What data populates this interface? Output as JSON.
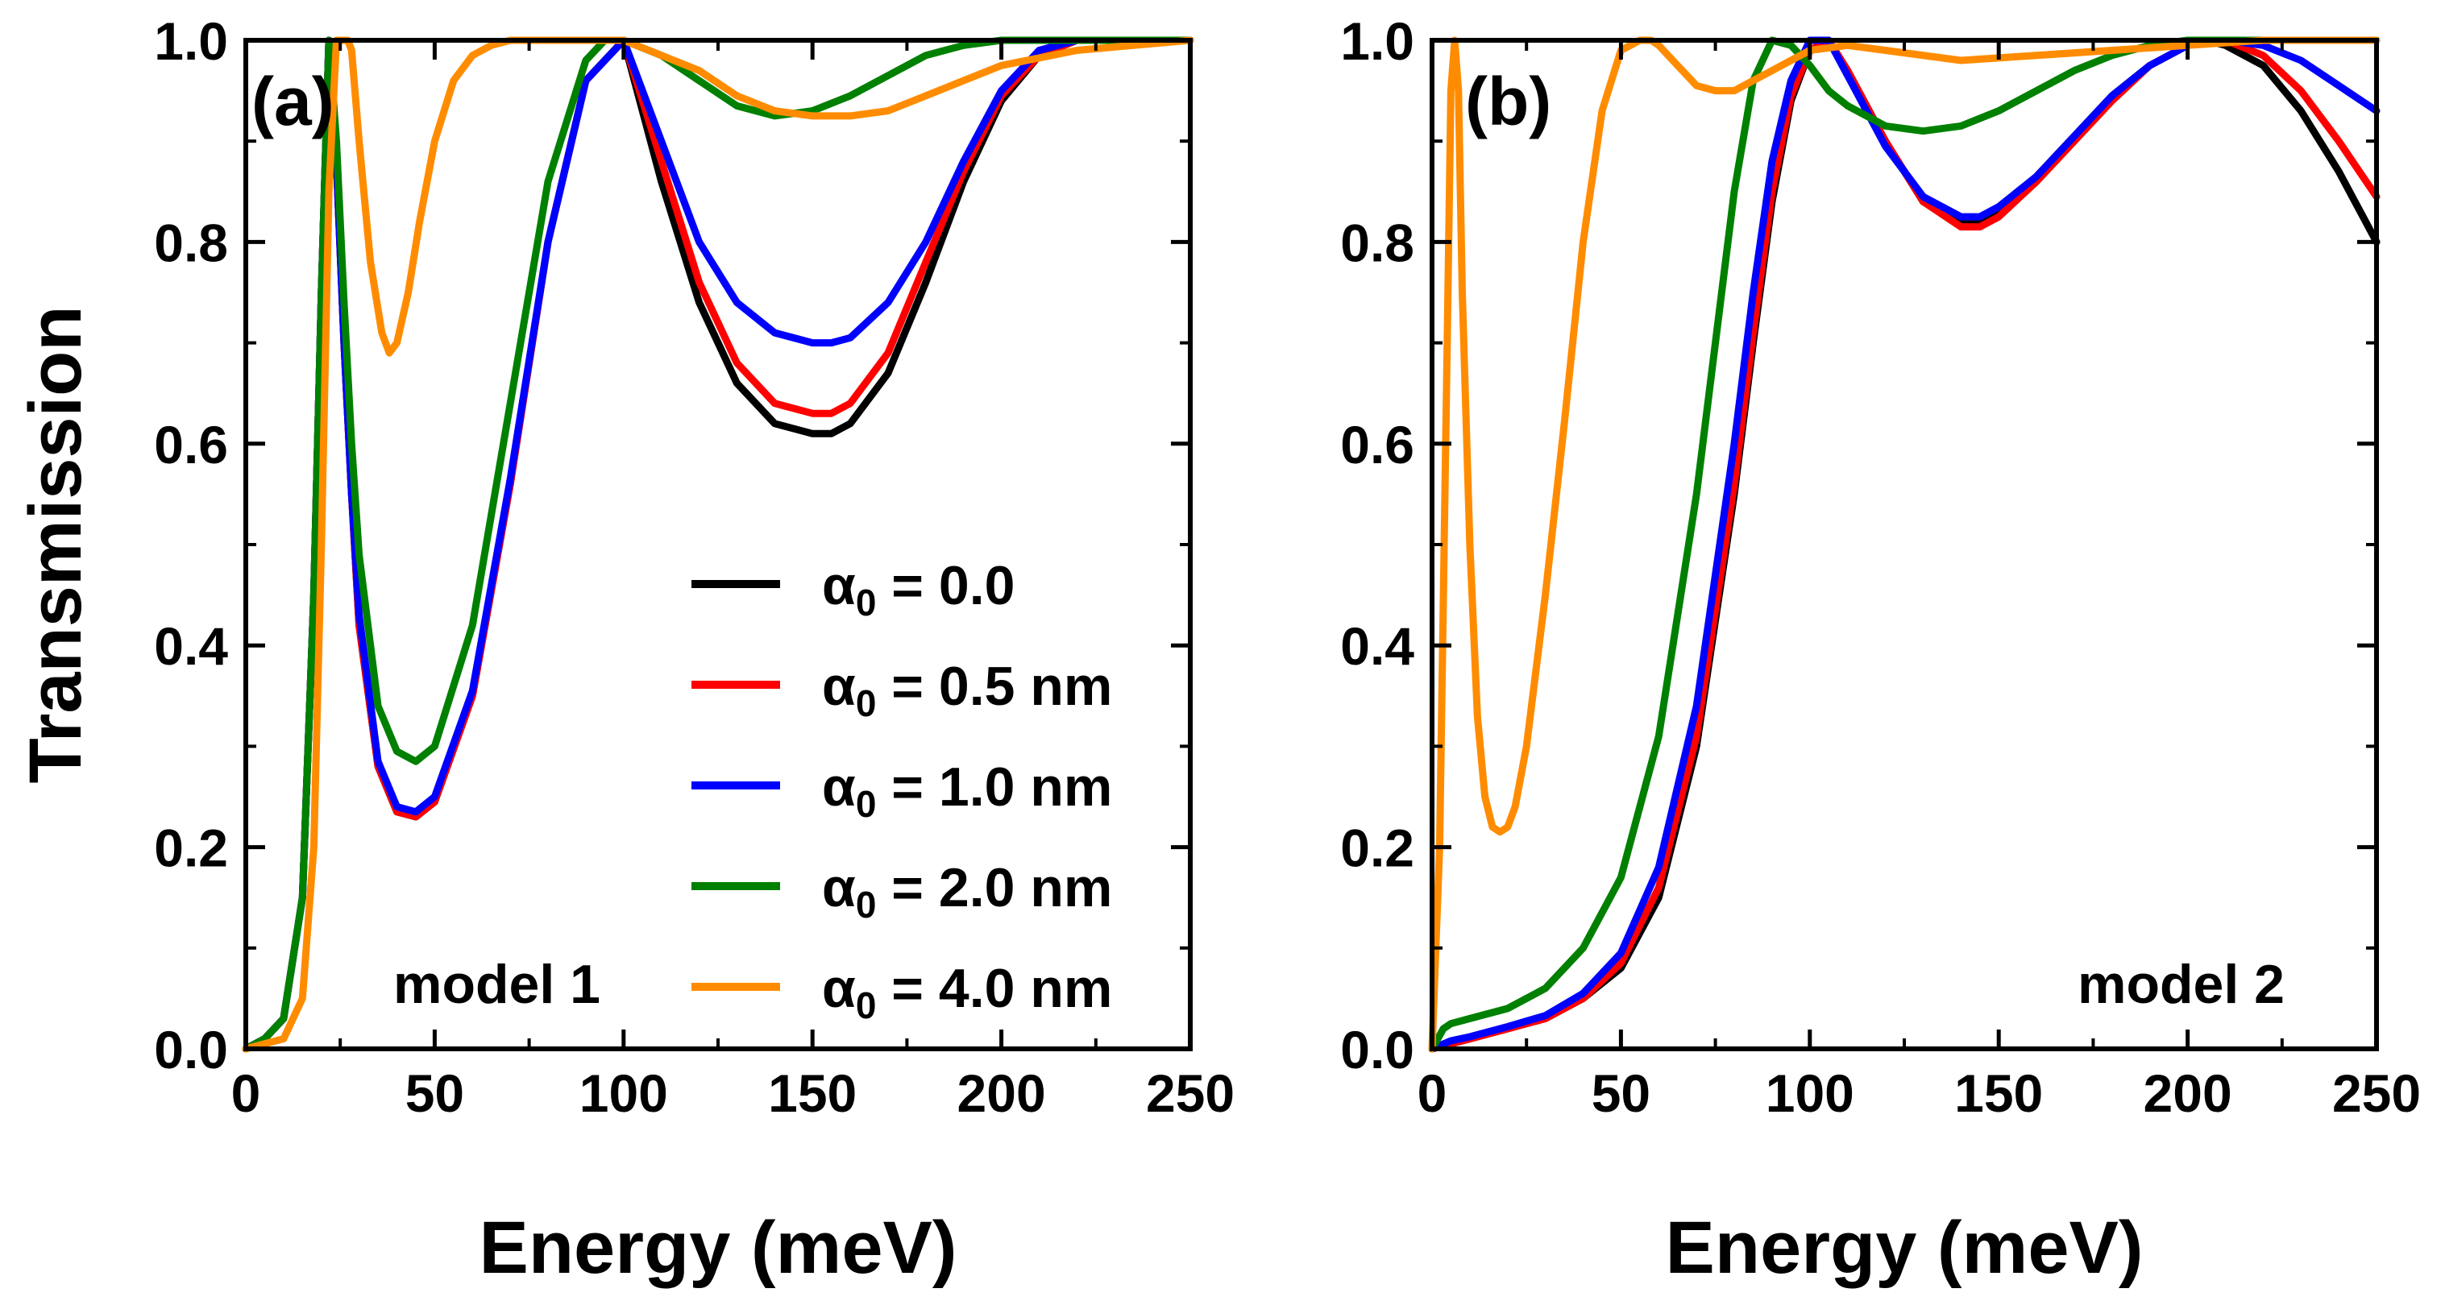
{
  "chart_data": [
    {
      "type": "line",
      "panel_label": "(a)",
      "model_label": "model 1",
      "xlabel": "Energy (meV)",
      "ylabel": "Transmission",
      "xlim": [
        0,
        250
      ],
      "ylim": [
        0,
        1.0
      ],
      "xticks": [
        "0",
        "50",
        "100",
        "150",
        "200",
        "250"
      ],
      "yticks": [
        "0.0",
        "0.2",
        "0.4",
        "0.6",
        "0.8",
        "1.0"
      ],
      "legend": {
        "placement": "center-right",
        "symbol": "α",
        "subscript": "0",
        "entries": [
          " = 0.0",
          " = 0.5 nm",
          " = 1.0 nm",
          " = 2.0 nm",
          " = 4.0 nm"
        ]
      },
      "series": [
        {
          "name": "α0 = 0.0",
          "color": "#000000",
          "x": [
            0,
            5,
            10,
            15,
            18,
            20,
            22,
            24,
            26,
            28,
            30,
            35,
            40,
            45,
            50,
            60,
            70,
            80,
            90,
            100,
            110,
            120,
            130,
            140,
            150,
            155,
            160,
            170,
            180,
            190,
            200,
            210,
            220,
            230,
            240,
            250
          ],
          "y": [
            0.0,
            0.01,
            0.03,
            0.15,
            0.45,
            0.75,
            1.0,
            0.88,
            0.7,
            0.55,
            0.42,
            0.28,
            0.235,
            0.23,
            0.245,
            0.35,
            0.56,
            0.8,
            0.96,
            1.0,
            0.86,
            0.74,
            0.66,
            0.62,
            0.61,
            0.61,
            0.62,
            0.67,
            0.76,
            0.86,
            0.94,
            0.985,
            1.0,
            1.0,
            1.0,
            1.0
          ]
        },
        {
          "name": "α0 = 0.5 nm",
          "color": "#ff0000",
          "x": [
            0,
            5,
            10,
            15,
            18,
            20,
            22,
            24,
            26,
            28,
            30,
            35,
            40,
            45,
            50,
            60,
            70,
            80,
            90,
            100,
            110,
            120,
            130,
            140,
            150,
            155,
            160,
            170,
            180,
            190,
            200,
            210,
            220,
            230,
            240,
            250
          ],
          "y": [
            0.0,
            0.01,
            0.03,
            0.15,
            0.45,
            0.75,
            1.0,
            0.88,
            0.7,
            0.55,
            0.42,
            0.28,
            0.235,
            0.23,
            0.245,
            0.35,
            0.56,
            0.8,
            0.96,
            1.0,
            0.88,
            0.76,
            0.68,
            0.64,
            0.63,
            0.63,
            0.64,
            0.69,
            0.78,
            0.87,
            0.945,
            0.985,
            1.0,
            1.0,
            1.0,
            1.0
          ]
        },
        {
          "name": "α0 = 1.0 nm",
          "color": "#0000ff",
          "x": [
            0,
            5,
            10,
            15,
            18,
            20,
            22,
            24,
            26,
            28,
            30,
            35,
            40,
            45,
            50,
            60,
            70,
            80,
            90,
            100,
            110,
            120,
            130,
            140,
            150,
            155,
            160,
            170,
            180,
            190,
            200,
            210,
            220,
            230,
            240,
            250
          ],
          "y": [
            0.0,
            0.01,
            0.03,
            0.15,
            0.45,
            0.75,
            1.0,
            0.88,
            0.7,
            0.55,
            0.43,
            0.285,
            0.24,
            0.235,
            0.25,
            0.355,
            0.565,
            0.8,
            0.96,
            1.0,
            0.9,
            0.8,
            0.74,
            0.71,
            0.7,
            0.7,
            0.705,
            0.74,
            0.8,
            0.88,
            0.95,
            0.99,
            1.0,
            1.0,
            1.0,
            1.0
          ]
        },
        {
          "name": "α0 = 2.0 nm",
          "color": "#008000",
          "x": [
            0,
            5,
            10,
            15,
            18,
            20,
            22,
            24,
            26,
            28,
            30,
            35,
            40,
            45,
            50,
            60,
            70,
            80,
            90,
            95,
            100,
            110,
            120,
            130,
            140,
            150,
            160,
            170,
            180,
            190,
            200,
            210,
            220,
            230,
            240,
            250
          ],
          "y": [
            0.0,
            0.01,
            0.03,
            0.15,
            0.45,
            0.75,
            1.0,
            0.9,
            0.74,
            0.6,
            0.49,
            0.34,
            0.295,
            0.285,
            0.3,
            0.42,
            0.64,
            0.86,
            0.98,
            1.0,
            1.0,
            0.985,
            0.96,
            0.935,
            0.925,
            0.93,
            0.945,
            0.965,
            0.985,
            0.995,
            1.0,
            1.0,
            1.0,
            1.0,
            1.0,
            1.0
          ]
        },
        {
          "name": "α0 = 4.0 nm",
          "color": "#ff8c00",
          "x": [
            0,
            5,
            10,
            15,
            18,
            20,
            22,
            24,
            26,
            27,
            28,
            30,
            33,
            36,
            38,
            40,
            43,
            46,
            50,
            55,
            60,
            65,
            70,
            80,
            100,
            120,
            130,
            140,
            150,
            160,
            170,
            180,
            190,
            200,
            220,
            250
          ],
          "y": [
            0.0,
            0.005,
            0.01,
            0.05,
            0.2,
            0.5,
            0.85,
            1.0,
            1.0,
            1.0,
            0.99,
            0.9,
            0.78,
            0.71,
            0.69,
            0.7,
            0.75,
            0.82,
            0.9,
            0.96,
            0.985,
            0.995,
            1.0,
            1.0,
            1.0,
            0.97,
            0.945,
            0.93,
            0.925,
            0.925,
            0.93,
            0.945,
            0.96,
            0.975,
            0.99,
            1.0
          ]
        }
      ]
    },
    {
      "type": "line",
      "panel_label": "(b)",
      "model_label": "model 2",
      "xlabel": "Energy (meV)",
      "xlim": [
        0,
        250
      ],
      "ylim": [
        0,
        1.0
      ],
      "xticks": [
        "0",
        "50",
        "100",
        "150",
        "200",
        "250"
      ],
      "yticks": [
        "0.0",
        "0.2",
        "0.4",
        "0.6",
        "0.8",
        "1.0"
      ],
      "series": [
        {
          "name": "α0 = 0.0",
          "color": "#000000",
          "x": [
            0,
            5,
            10,
            20,
            30,
            40,
            50,
            60,
            70,
            80,
            85,
            90,
            95,
            100,
            105,
            110,
            120,
            130,
            140,
            145,
            150,
            160,
            170,
            180,
            190,
            200,
            205,
            210,
            220,
            230,
            240,
            250
          ],
          "y": [
            0.0,
            0.005,
            0.01,
            0.02,
            0.03,
            0.05,
            0.08,
            0.15,
            0.3,
            0.55,
            0.7,
            0.84,
            0.94,
            0.99,
            1.0,
            0.97,
            0.9,
            0.84,
            0.82,
            0.82,
            0.83,
            0.865,
            0.905,
            0.945,
            0.975,
            0.995,
            1.0,
            0.995,
            0.975,
            0.93,
            0.87,
            0.8
          ]
        },
        {
          "name": "α0 = 0.5 nm",
          "color": "#ff0000",
          "x": [
            0,
            5,
            10,
            20,
            30,
            40,
            50,
            60,
            70,
            80,
            85,
            90,
            95,
            100,
            105,
            110,
            120,
            130,
            140,
            145,
            150,
            160,
            170,
            180,
            190,
            200,
            205,
            210,
            220,
            230,
            240,
            250
          ],
          "y": [
            0.0,
            0.005,
            0.01,
            0.02,
            0.03,
            0.05,
            0.085,
            0.16,
            0.31,
            0.56,
            0.71,
            0.85,
            0.945,
            0.99,
            1.0,
            0.97,
            0.9,
            0.84,
            0.815,
            0.815,
            0.825,
            0.86,
            0.9,
            0.94,
            0.975,
            0.995,
            1.0,
            1.0,
            0.985,
            0.95,
            0.9,
            0.845
          ]
        },
        {
          "name": "α0 = 1.0 nm",
          "color": "#0000ff",
          "x": [
            0,
            5,
            10,
            20,
            30,
            40,
            50,
            60,
            70,
            80,
            85,
            90,
            95,
            100,
            105,
            110,
            120,
            130,
            140,
            145,
            150,
            160,
            170,
            180,
            190,
            200,
            205,
            210,
            220,
            230,
            240,
            250
          ],
          "y": [
            0.0,
            0.008,
            0.012,
            0.022,
            0.033,
            0.055,
            0.095,
            0.18,
            0.34,
            0.6,
            0.75,
            0.88,
            0.96,
            1.0,
            1.0,
            0.965,
            0.895,
            0.845,
            0.825,
            0.825,
            0.835,
            0.865,
            0.905,
            0.945,
            0.975,
            0.995,
            1.0,
            1.0,
            0.995,
            0.98,
            0.955,
            0.93
          ]
        },
        {
          "name": "α0 = 2.0 nm",
          "color": "#008000",
          "x": [
            0,
            3,
            5,
            10,
            20,
            30,
            40,
            50,
            60,
            70,
            80,
            85,
            90,
            95,
            100,
            105,
            110,
            120,
            130,
            140,
            150,
            160,
            170,
            180,
            190,
            200,
            210,
            220,
            230,
            240,
            250
          ],
          "y": [
            0.0,
            0.02,
            0.025,
            0.03,
            0.04,
            0.06,
            0.1,
            0.17,
            0.31,
            0.55,
            0.85,
            0.96,
            1.0,
            0.995,
            0.975,
            0.95,
            0.935,
            0.915,
            0.91,
            0.915,
            0.93,
            0.95,
            0.97,
            0.985,
            0.995,
            1.0,
            1.0,
            1.0,
            1.0,
            1.0,
            1.0
          ]
        },
        {
          "name": "α0 = 4.0 nm",
          "color": "#ff8c00",
          "x": [
            0,
            2,
            4,
            5,
            6,
            7,
            8,
            10,
            12,
            14,
            16,
            18,
            20,
            22,
            25,
            30,
            35,
            40,
            45,
            50,
            55,
            58,
            60,
            65,
            70,
            75,
            80,
            90,
            100,
            110,
            120,
            140,
            160,
            180,
            200,
            220,
            250
          ],
          "y": [
            0.0,
            0.2,
            0.7,
            0.95,
            1.0,
            0.95,
            0.75,
            0.5,
            0.33,
            0.25,
            0.22,
            0.215,
            0.22,
            0.24,
            0.3,
            0.45,
            0.62,
            0.8,
            0.93,
            0.99,
            1.0,
            1.0,
            0.995,
            0.975,
            0.955,
            0.95,
            0.95,
            0.97,
            0.99,
            0.995,
            0.99,
            0.98,
            0.985,
            0.99,
            0.995,
            1.0,
            1.0
          ]
        }
      ]
    }
  ]
}
